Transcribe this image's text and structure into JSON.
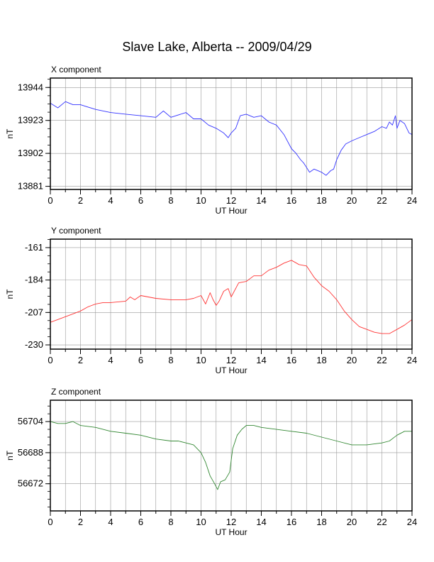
{
  "title": "Slave Lake, Alberta -- 2009/04/29",
  "chart_data": [
    {
      "type": "line",
      "title": "X component",
      "xlabel": "UT Hour",
      "ylabel": "nT",
      "xlim": [
        0,
        24
      ],
      "ylim": [
        13879,
        13950
      ],
      "xticks": [
        0,
        2,
        4,
        6,
        8,
        10,
        12,
        14,
        16,
        18,
        20,
        22,
        24
      ],
      "yticks": [
        13944,
        13923,
        13902,
        13881
      ],
      "grid": true,
      "series": [
        {
          "color": "#3333ff",
          "x": [
            0,
            0.5,
            1,
            1.5,
            2,
            3,
            4,
            5,
            6,
            7,
            7.5,
            8,
            9,
            9.5,
            10,
            10.5,
            11,
            11.5,
            11.8,
            12,
            12.3,
            12.6,
            13,
            13.5,
            14,
            14.5,
            15,
            15.5,
            16,
            16.3,
            16.6,
            16.8,
            17,
            17.2,
            17.5,
            18,
            18.3,
            18.6,
            18.8,
            19,
            19.3,
            19.6,
            20,
            20.5,
            21,
            21.5,
            22,
            22.3,
            22.5,
            22.7,
            22.9,
            23,
            23.2,
            23.5,
            23.8,
            24
          ],
          "y": [
            13934,
            13931,
            13935,
            13933,
            13933,
            13930,
            13928,
            13927,
            13926,
            13925,
            13929,
            13925,
            13928,
            13924,
            13924,
            13920,
            13918,
            13915,
            13912,
            13915,
            13918,
            13926,
            13927,
            13925,
            13926,
            13922,
            13920,
            13914,
            13905,
            13902,
            13898,
            13896,
            13893,
            13890,
            13892,
            13890,
            13888,
            13891,
            13892,
            13898,
            13904,
            13908,
            13910,
            13912,
            13914,
            13916,
            13919,
            13918,
            13922,
            13920,
            13926,
            13918,
            13923,
            13921,
            13915,
            13914
          ]
        }
      ]
    },
    {
      "type": "line",
      "title": "Y component",
      "xlabel": "UT Hour",
      "ylabel": "nT",
      "xlim": [
        0,
        24
      ],
      "ylim": [
        -233,
        -155
      ],
      "xticks": [
        0,
        2,
        4,
        6,
        8,
        10,
        12,
        14,
        16,
        18,
        20,
        22,
        24
      ],
      "yticks": [
        -161,
        -184,
        -207,
        -230
      ],
      "grid": true,
      "series": [
        {
          "color": "#ff3333",
          "x": [
            0,
            0.5,
            1,
            1.5,
            2,
            2.5,
            3,
            3.5,
            4,
            5,
            5.3,
            5.6,
            6,
            6.5,
            7,
            8,
            9,
            9.5,
            10,
            10.3,
            10.6,
            10.8,
            11,
            11.2,
            11.5,
            11.8,
            12,
            12.5,
            13,
            13.5,
            14,
            14.5,
            15,
            15.5,
            16,
            16.5,
            17,
            17.5,
            18,
            18.5,
            19,
            19.5,
            20,
            20.5,
            21,
            21.5,
            22,
            22.5,
            23,
            23.5,
            24
          ],
          "y": [
            -214,
            -212,
            -210,
            -208,
            -206,
            -203,
            -201,
            -200,
            -200,
            -199,
            -196,
            -198,
            -195,
            -196,
            -197,
            -198,
            -198,
            -197,
            -195,
            -201,
            -193,
            -198,
            -202,
            -199,
            -192,
            -190,
            -196,
            -186,
            -185,
            -181,
            -181,
            -177,
            -175,
            -172,
            -170,
            -173,
            -174,
            -182,
            -188,
            -192,
            -198,
            -206,
            -212,
            -217,
            -219,
            -221,
            -222,
            -222,
            -219,
            -216,
            -212
          ]
        }
      ]
    },
    {
      "type": "line",
      "title": "Z component",
      "xlabel": "UT Hour",
      "ylabel": "nT",
      "xlim": [
        0,
        24
      ],
      "ylim": [
        56658,
        56715
      ],
      "xticks": [
        0,
        2,
        4,
        6,
        8,
        10,
        12,
        14,
        16,
        18,
        20,
        22,
        24
      ],
      "yticks": [
        56704,
        56688,
        56672
      ],
      "grid": true,
      "series": [
        {
          "color": "#338833",
          "x": [
            0,
            0.5,
            1,
            1.5,
            2,
            3,
            4,
            5,
            6,
            7,
            8,
            8.5,
            9,
            9.5,
            10,
            10.3,
            10.6,
            10.9,
            11.1,
            11.3,
            11.6,
            11.9,
            12.1,
            12.4,
            12.7,
            13,
            13.5,
            14,
            15,
            16,
            17,
            18,
            19,
            20,
            21,
            22,
            22.5,
            23,
            23.5,
            24
          ],
          "y": [
            56704,
            56703,
            56703,
            56704,
            56702,
            56701,
            56699,
            56698,
            56697,
            56695,
            56694,
            56694,
            56693,
            56692,
            56688,
            56683,
            56676,
            56672,
            56669,
            56673,
            56674,
            56678,
            56690,
            56697,
            56700,
            56702,
            56702,
            56701,
            56700,
            56699,
            56698,
            56696,
            56694,
            56692,
            56692,
            56693,
            56694,
            56697,
            56699,
            56699
          ]
        }
      ]
    }
  ]
}
